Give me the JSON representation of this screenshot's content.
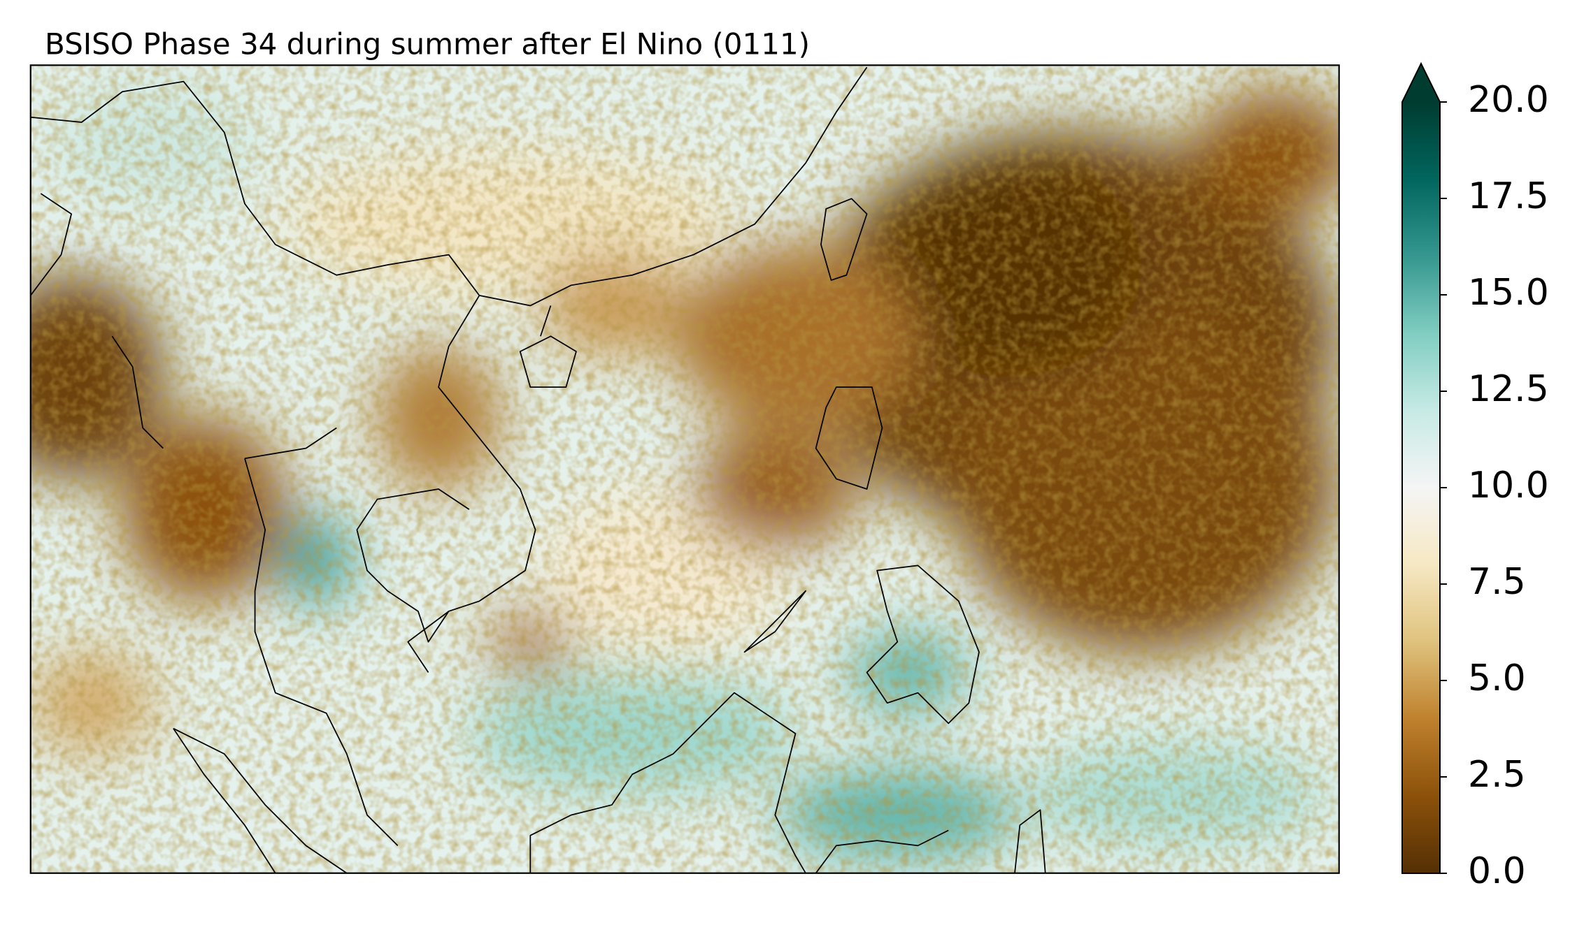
{
  "title": "BSISO Phase 34 during summer after El Nino  (0111)",
  "colorbar": {
    "clim": [
      0,
      20
    ],
    "extend": "max",
    "colormap": [
      "#543005",
      "#8c510a",
      "#bf812d",
      "#dfc27d",
      "#f6e8c3",
      "#f5f5f5",
      "#c7eae5",
      "#80cdc1",
      "#35978f",
      "#01665e",
      "#003c30"
    ],
    "ticks": [
      {
        "value": 0,
        "label": "0.0"
      },
      2.5,
      {
        "value": 5,
        "label": "5.0"
      },
      7.5,
      {
        "value": 10,
        "label": "10.0"
      },
      12.5,
      {
        "value": 15,
        "label": "15.0"
      },
      17.5,
      {
        "value": 20,
        "label": "20.0"
      }
    ]
  }
}
